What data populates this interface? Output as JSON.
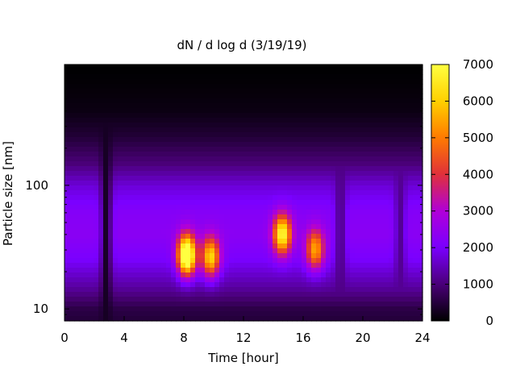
{
  "chart_data": {
    "type": "heatmap",
    "title": "dN / d log d (3/19/19)",
    "xlabel": "Time [hour]",
    "ylabel": "Particle size [nm]",
    "x_range": [
      0,
      24
    ],
    "x_ticks": [
      "0",
      "4",
      "8",
      "12",
      "16",
      "20",
      "24"
    ],
    "x_tick_values": [
      0,
      4,
      8,
      12,
      16,
      20,
      24
    ],
    "y_scale": "log",
    "y_range": [
      8,
      950
    ],
    "y_ticks": [
      "10",
      "100"
    ],
    "y_tick_values": [
      10,
      100
    ],
    "colorbar": {
      "range": [
        0,
        7000
      ],
      "ticks": [
        "0",
        "1000",
        "2000",
        "3000",
        "4000",
        "5000",
        "6000",
        "7000"
      ],
      "tick_values": [
        0,
        1000,
        2000,
        3000,
        4000,
        5000,
        6000,
        7000
      ],
      "palette": [
        "#000000",
        "#4a0078",
        "#7a00ff",
        "#b000d8",
        "#e0303a",
        "#ff7a00",
        "#ffd000",
        "#ffff40"
      ]
    },
    "background_by_diameter_nm": [
      {
        "d": 8.5,
        "v": 500
      },
      {
        "d": 10,
        "v": 600
      },
      {
        "d": 15,
        "v": 1300
      },
      {
        "d": 25,
        "v": 2000
      },
      {
        "d": 40,
        "v": 2300
      },
      {
        "d": 60,
        "v": 2200
      },
      {
        "d": 100,
        "v": 1700
      },
      {
        "d": 150,
        "v": 1000
      },
      {
        "d": 250,
        "v": 450
      },
      {
        "d": 400,
        "v": 150
      },
      {
        "d": 700,
        "v": 40
      },
      {
        "d": 950,
        "v": 0
      }
    ],
    "high_concentration_events": [
      {
        "time_h": 8.2,
        "diameter_nm": 27,
        "peak": 6600
      },
      {
        "time_h": 9.8,
        "diameter_nm": 26,
        "peak": 4200
      },
      {
        "time_h": 14.6,
        "diameter_nm": 40,
        "peak": 4700
      },
      {
        "time_h": 16.8,
        "diameter_nm": 30,
        "peak": 3400
      }
    ],
    "low_concentration_intervals": [
      {
        "time_h": 2.8,
        "value": 300
      },
      {
        "time_h": 18.5,
        "value": 1100
      },
      {
        "time_h": 22.5,
        "value": 1200
      }
    ],
    "grid": false,
    "legend": "colorbar-right"
  }
}
